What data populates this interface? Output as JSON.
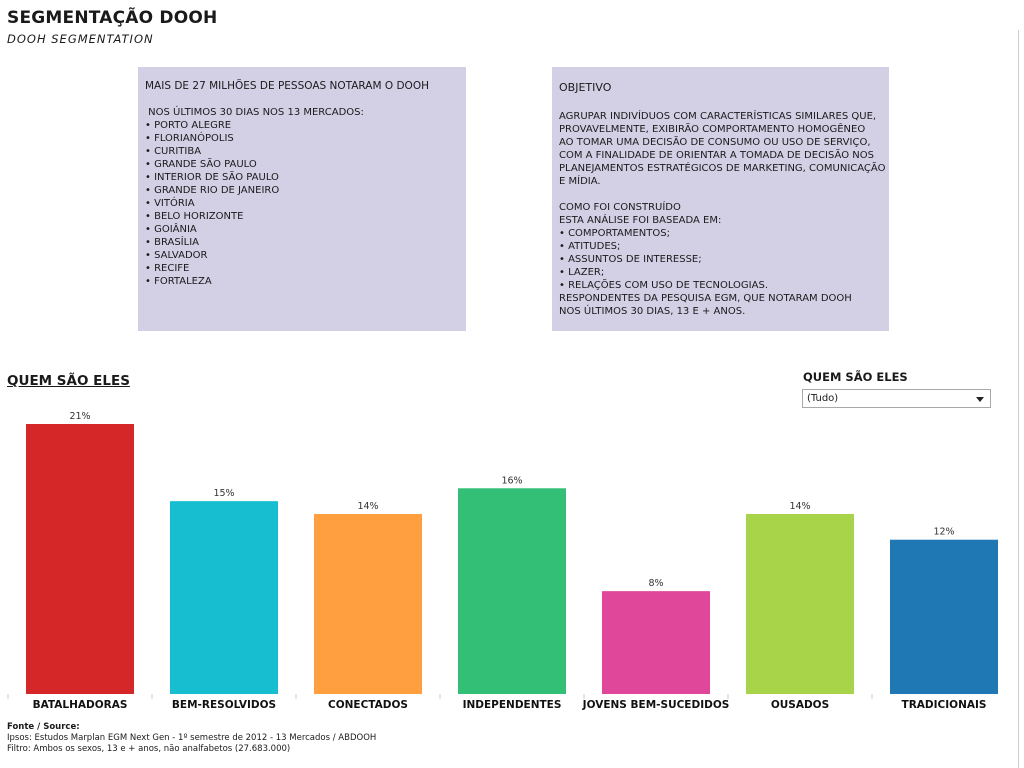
{
  "header": {
    "title": "SEGMENTAÇÃO DOOH",
    "subtitle": "DOOH SEGMENTATION"
  },
  "left_box": {
    "heading": "MAIS DE 27 MILHÕES DE PESSOAS NOTARAM O DOOH",
    "intro": " NOS ÚLTIMOS 30 DIAS NOS 13 MERCADOS:",
    "items": [
      "• PORTO ALEGRE",
      "• FLORIANÓPOLIS",
      "• CURITIBA",
      "• GRANDE SÃO PAULO",
      "• INTERIOR DE SÃO PAULO",
      "• GRANDE RIO DE JANEIRO",
      "• VITÓRIA",
      "• BELO HORIZONTE",
      "• GOIÂNIA",
      "• BRASÍLIA",
      "• SALVADOR",
      "• RECIFE",
      "• FORTALEZA"
    ]
  },
  "right_box": {
    "heading": "OBJETIVO",
    "paragraph1": [
      "AGRUPAR INDIVÍDUOS COM CARACTERÍSTICAS SIMILARES QUE,",
      "PROVAVELMENTE, EXIBIRÃO COMPORTAMENTO HOMOGÊNEO",
      "AO TOMAR UMA DECISÃO DE CONSUMO OU USO DE SERVIÇO,",
      "COM A FINALIDADE DE ORIENTAR A TOMADA DE DECISÃO NOS",
      "PLANEJAMENTOS ESTRATÉGICOS DE MARKETING, COMUNICAÇÃO",
      "E MÍDIA."
    ],
    "paragraph2": [
      "COMO FOI CONSTRUÍDO",
      "ESTA ANÁLISE FOI BASEADA EM:",
      "• COMPORTAMENTOS;",
      "• ATITUDES;",
      "• ASSUNTOS DE INTERESSE;",
      "• LAZER;",
      "• RELAÇÕES COM USO DE TECNOLOGIAS.",
      "RESPONDENTES DA PESQUISA EGM, QUE NOTARAM DOOH",
      "NOS ÚLTIMOS 30 DIAS, 13 E + ANOS."
    ]
  },
  "section": {
    "title": "QUEM SÃO ELES"
  },
  "filter": {
    "label": "QUEM SÃO ELES",
    "selected": "(Tudo)"
  },
  "chart_data": {
    "type": "bar",
    "categories": [
      "BATALHADORAS",
      "BEM-RESOLVIDOS",
      "CONECTADOS",
      "INDEPENDENTES",
      "JOVENS BEM-SUCEDIDOS",
      "OUSADOS",
      "TRADICIONAIS"
    ],
    "values": [
      21,
      15,
      14,
      16,
      8,
      14,
      12
    ],
    "value_labels": [
      "21%",
      "15%",
      "14%",
      "16%",
      "8%",
      "14%",
      "12%"
    ],
    "colors": [
      "#d62728",
      "#17becf",
      "#ff9f40",
      "#33bf75",
      "#e0469a",
      "#a8d44a",
      "#1f77b4"
    ],
    "ylim": [
      0,
      21
    ],
    "grid": false,
    "legend": "none"
  },
  "source": {
    "heading": "Fonte / Source:",
    "lines": [
      "Ipsos: Estudos Marplan EGM Next Gen - 1º semestre de 2012 - 13 Mercados / ABDOOH",
      "Filtro: Ambos os sexos, 13 e + anos, não analfabetos (27.683.000)"
    ]
  }
}
